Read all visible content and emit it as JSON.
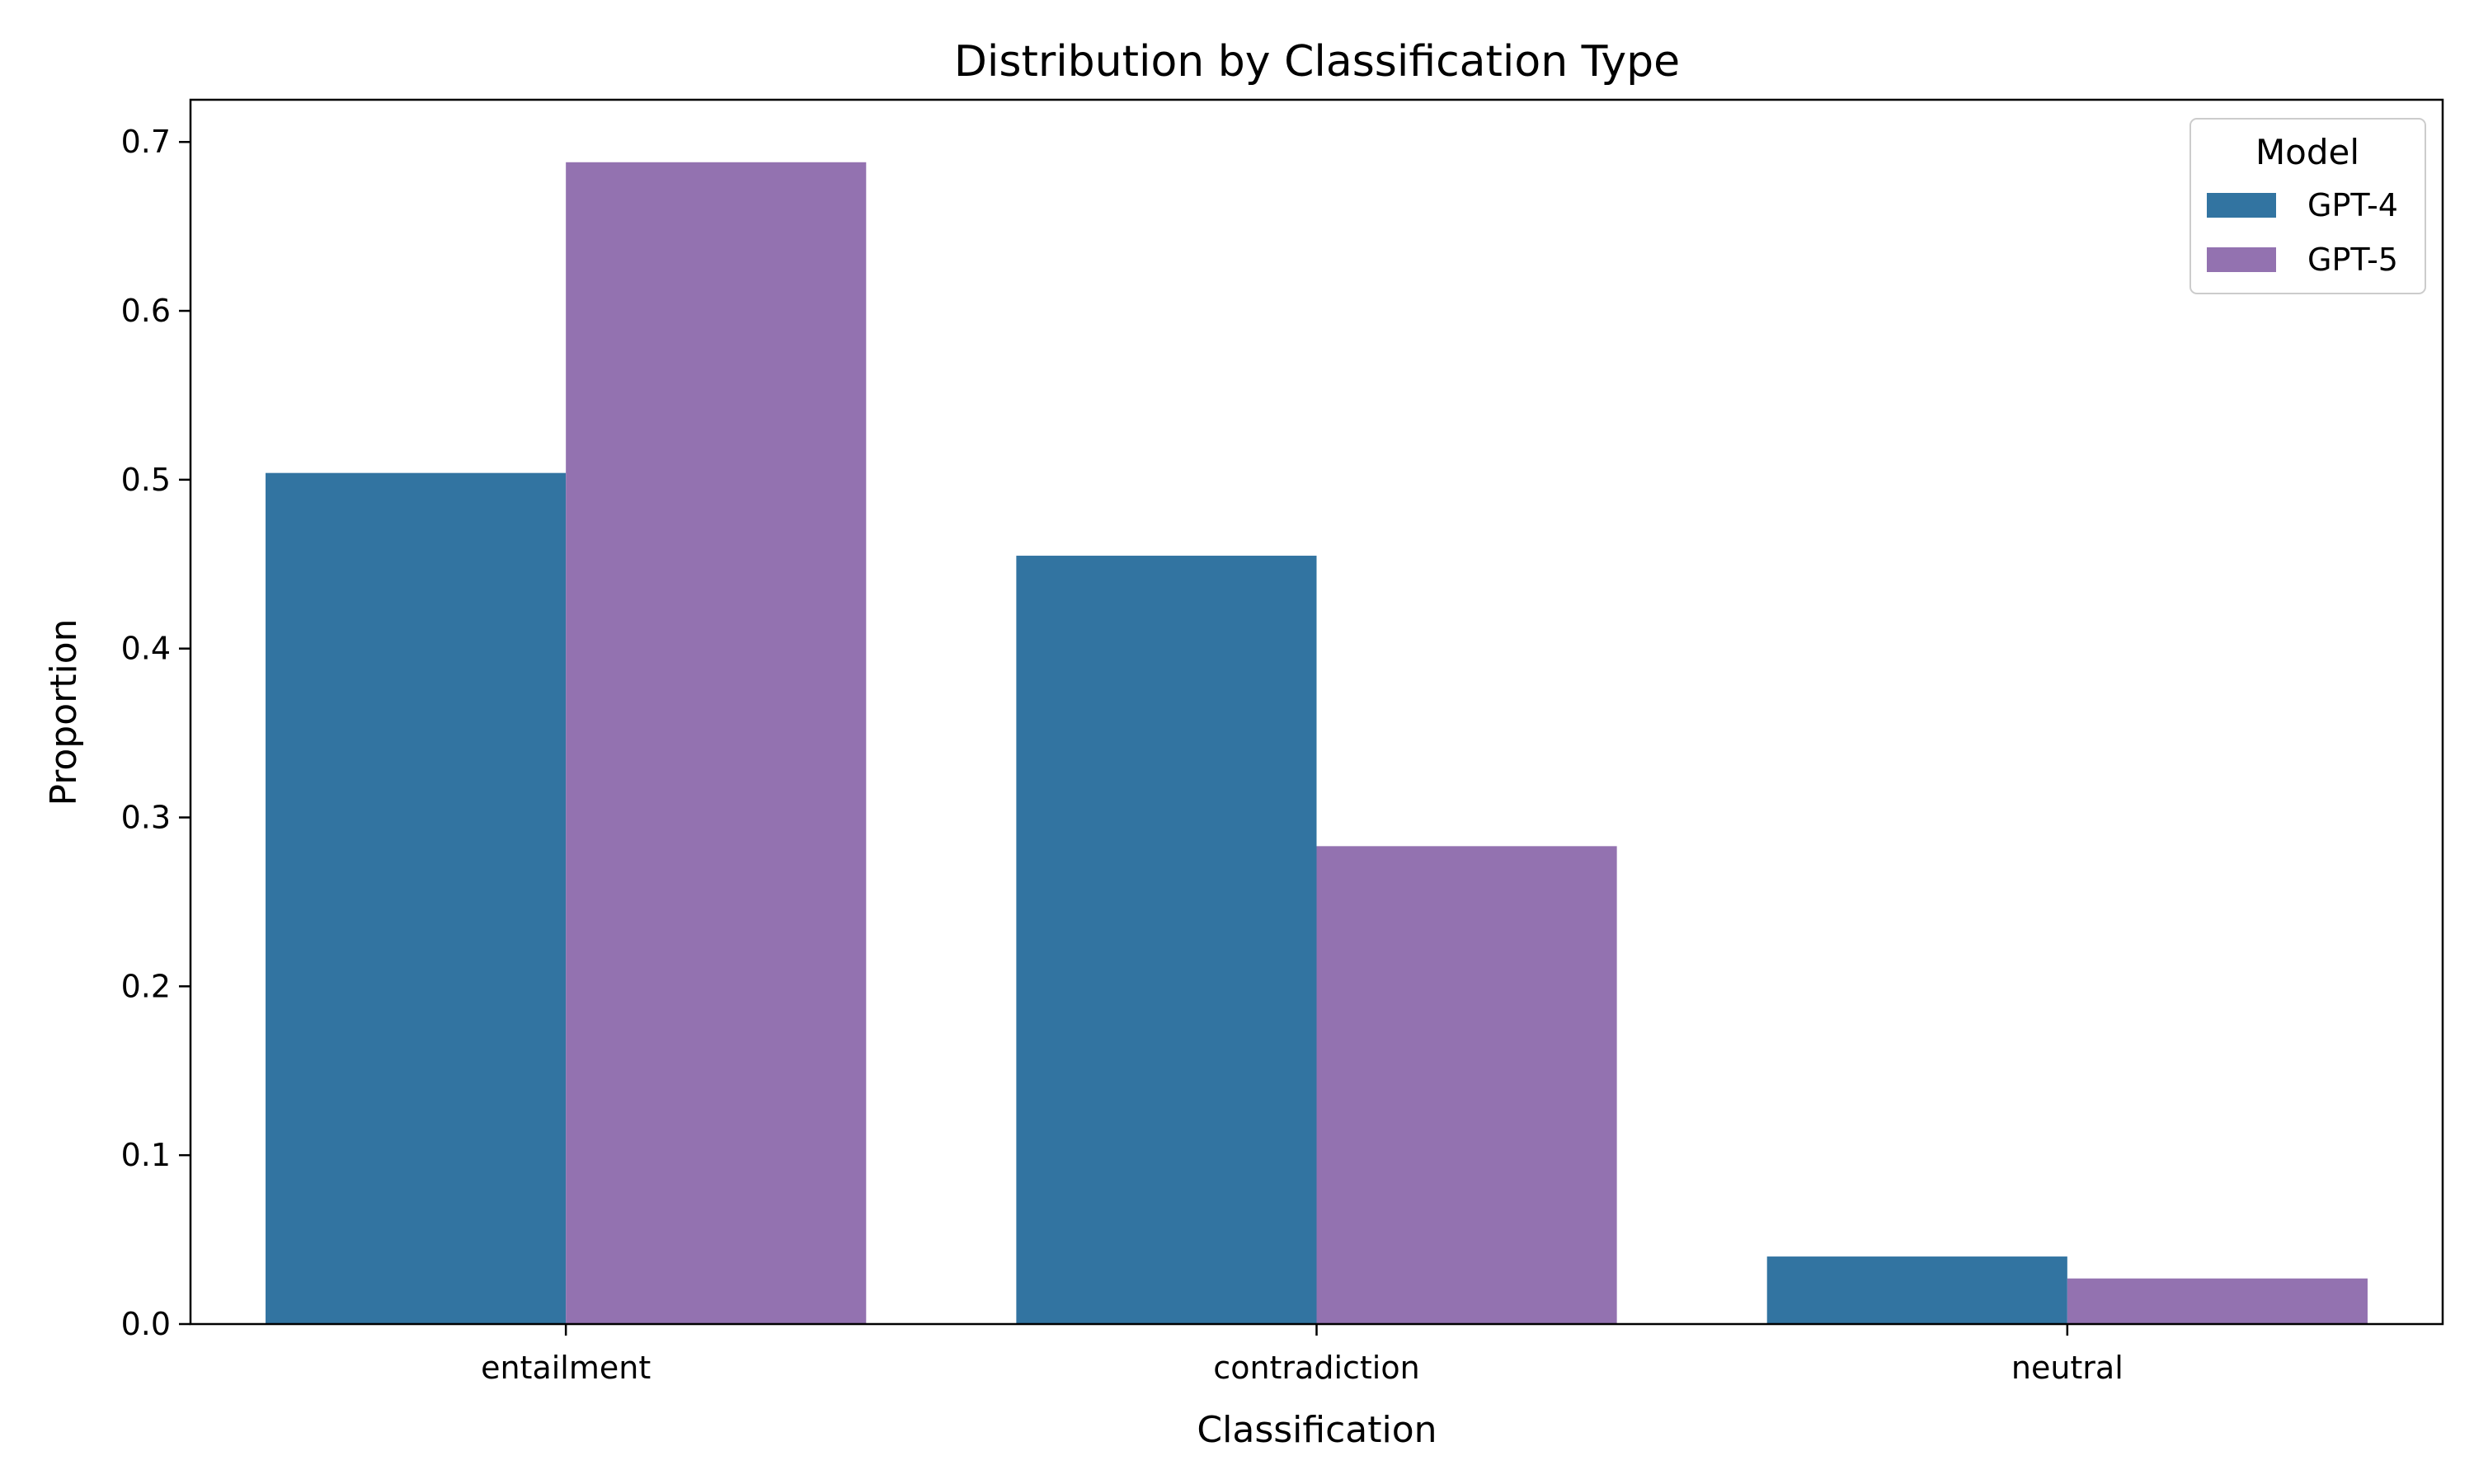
{
  "chart_data": {
    "type": "bar",
    "title": "Distribution by Classification Type",
    "xlabel": "Classification",
    "ylabel": "Proportion",
    "categories": [
      "entailment",
      "contradiction",
      "neutral"
    ],
    "series": [
      {
        "name": "GPT-4",
        "color": "#3274a1",
        "values": [
          0.504,
          0.455,
          0.04
        ]
      },
      {
        "name": "GPT-5",
        "color": "#9372b0",
        "values": [
          0.688,
          0.283,
          0.027
        ]
      }
    ],
    "ylim": [
      0,
      0.725
    ],
    "yticks": [
      0.0,
      0.1,
      0.2,
      0.3,
      0.4,
      0.5,
      0.6,
      0.7
    ],
    "ytick_labels": [
      "0.0",
      "0.1",
      "0.2",
      "0.3",
      "0.4",
      "0.5",
      "0.6",
      "0.7"
    ],
    "grid": false,
    "legend": {
      "title": "Model",
      "position": "top-right"
    }
  }
}
